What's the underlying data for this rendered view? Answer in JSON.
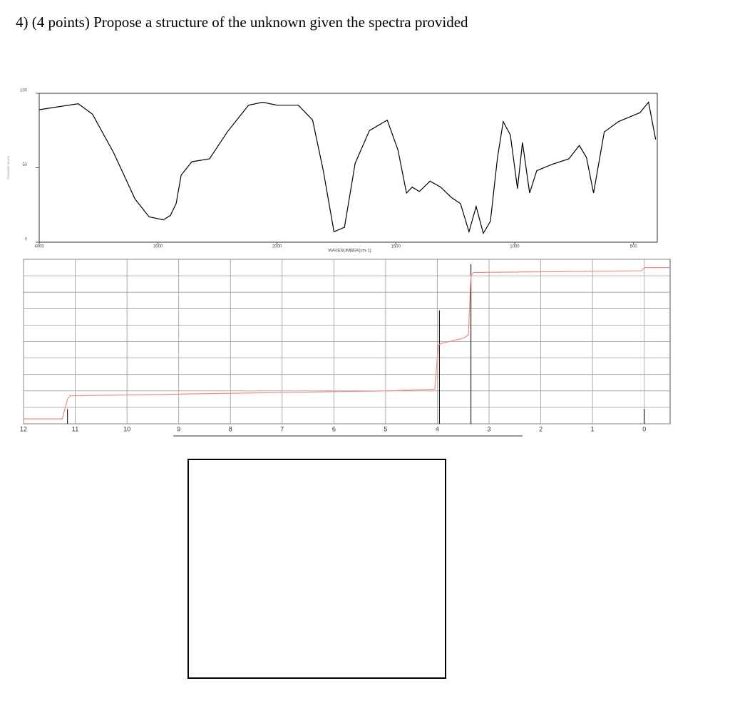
{
  "question": "4) (4 points) Propose a structure of the unknown given the spectra provided",
  "chart_data": [
    {
      "type": "line",
      "x_label": "WAVENUMBER(cm-1)",
      "y_label": "TRANSMITTANCE",
      "x_scale": "tick-spaced",
      "xlim": [
        4000,
        400
      ],
      "xticks": [
        4000,
        3000,
        2000,
        1500,
        1000,
        500
      ],
      "ylim": [
        0,
        100
      ],
      "yticks": [
        0,
        50,
        100
      ],
      "color": "#000000",
      "x": [
        4000,
        3672,
        3552,
        3373,
        3194,
        3075,
        2955,
        2896,
        2848,
        2806,
        2716,
        2567,
        2418,
        2239,
        2119,
        2000,
        1910,
        1850,
        1805,
        1760,
        1716,
        1671,
        1611,
        1536,
        1491,
        1455,
        1431,
        1401,
        1356,
        1311,
        1266,
        1228,
        1192,
        1162,
        1132,
        1102,
        1072,
        1048,
        1018,
        988,
        967,
        937,
        907,
        847,
        772,
        728,
        698,
        668,
        623,
        563,
        503,
        473,
        437,
        407
      ],
      "values": [
        89,
        93,
        86,
        60,
        29,
        17,
        15,
        18,
        26,
        45,
        54,
        56,
        74,
        92,
        94,
        92,
        92,
        82,
        48,
        7,
        10,
        53,
        75,
        82,
        62,
        33,
        37,
        34,
        41,
        37,
        30,
        26,
        7,
        24,
        6,
        14,
        57,
        81,
        72,
        36,
        67,
        33,
        48,
        52,
        56,
        65,
        57,
        33,
        74,
        81,
        85,
        87,
        94,
        69
      ]
    },
    {
      "type": "nmr",
      "xlim": [
        12,
        -0.5
      ],
      "xticks": [
        12,
        11,
        10,
        9,
        8,
        7,
        6,
        5,
        4,
        3,
        2,
        1,
        0
      ],
      "ylim": [
        0,
        100
      ],
      "yticks": [
        0,
        10,
        20,
        30,
        40,
        50,
        60,
        70,
        80,
        90,
        100
      ],
      "grid": true,
      "peaks": {
        "color": "#000000",
        "x": [
          11.15,
          3.96,
          3.35,
          0
        ],
        "values": [
          9,
          69,
          97,
          9
        ]
      },
      "integral": {
        "color": "#f08a8a",
        "x": [
          12,
          11.25,
          11.15,
          11.1,
          5,
          4.05,
          3.98,
          3.9,
          3.5,
          3.4,
          3.35,
          3.3,
          0.05,
          0,
          -0.5
        ],
        "values": [
          3,
          3,
          15,
          17,
          20,
          21,
          48,
          49,
          52,
          54,
          90,
          92,
          93,
          95,
          95
        ]
      }
    }
  ]
}
